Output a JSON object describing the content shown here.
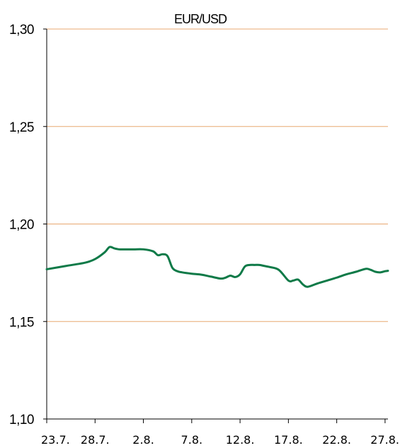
{
  "chart_data": {
    "type": "line",
    "title": "EUR/USD",
    "xlabel": "",
    "ylabel": "",
    "ylim": [
      1.1,
      1.3
    ],
    "yticks": [
      "1,30",
      "1,25",
      "1,20",
      "1,15",
      "1,10"
    ],
    "ytick_values": [
      1.3,
      1.25,
      1.2,
      1.15,
      1.1
    ],
    "xticks": [
      "23.7.",
      "28.7.",
      "2.8.",
      "7.8.",
      "12.8.",
      "17.8.",
      "22.8.",
      "27.8."
    ],
    "xtick_days": [
      0,
      5,
      10,
      15,
      20,
      25,
      30,
      35
    ],
    "xlim_days": [
      0,
      35.3
    ],
    "grid": "horizontal",
    "colors": {
      "series": "#0f7a48",
      "grid": "#e8a870",
      "axis": "#000000"
    },
    "series": [
      {
        "x_days": [
          0,
          2,
          4,
          5,
          6,
          6.5,
          7,
          7.5,
          8,
          9,
          10,
          11,
          11.5,
          12,
          12.5,
          13,
          13.5,
          14,
          15,
          16,
          17,
          18,
          18.5,
          19,
          19.5,
          20,
          20.5,
          21,
          21.5,
          22,
          22.5,
          23,
          24,
          25,
          25.5,
          26,
          26.5,
          27,
          28,
          29,
          30,
          31,
          32,
          33,
          33.5,
          34,
          34.5,
          35,
          35.3
        ],
        "values": [
          1.1768,
          1.1785,
          1.1802,
          1.182,
          1.1855,
          1.1882,
          1.1875,
          1.187,
          1.187,
          1.187,
          1.187,
          1.186,
          1.184,
          1.1845,
          1.1835,
          1.1775,
          1.1758,
          1.1752,
          1.1745,
          1.174,
          1.173,
          1.172,
          1.1725,
          1.1735,
          1.1728,
          1.1742,
          1.1782,
          1.179,
          1.179,
          1.179,
          1.1785,
          1.178,
          1.1765,
          1.171,
          1.171,
          1.1715,
          1.169,
          1.1678,
          1.1695,
          1.171,
          1.1725,
          1.1742,
          1.1755,
          1.177,
          1.1765,
          1.1755,
          1.1752,
          1.1758,
          1.176
        ]
      }
    ]
  }
}
